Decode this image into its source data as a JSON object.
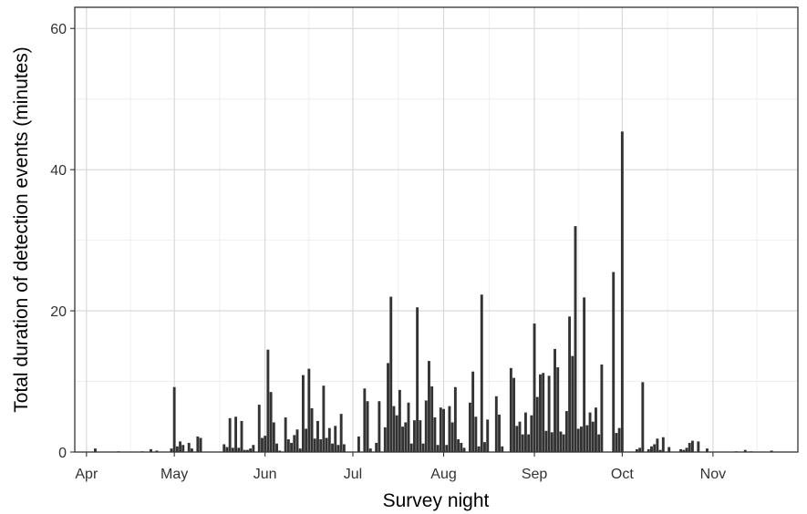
{
  "chart_data": {
    "type": "bar",
    "title": "",
    "xlabel": "Survey night",
    "ylabel": "Total duration of detection events (minutes)",
    "ylim": [
      0,
      63
    ],
    "yticks": [
      0,
      20,
      40,
      60
    ],
    "xlim": [
      "2021-03-28",
      "2021-11-30"
    ],
    "xticks": [
      {
        "date": "2021-04-01",
        "label": "Apr"
      },
      {
        "date": "2021-05-01",
        "label": "May"
      },
      {
        "date": "2021-06-01",
        "label": "Jun"
      },
      {
        "date": "2021-07-01",
        "label": "Jul"
      },
      {
        "date": "2021-08-01",
        "label": "Aug"
      },
      {
        "date": "2021-09-01",
        "label": "Sep"
      },
      {
        "date": "2021-10-01",
        "label": "Oct"
      },
      {
        "date": "2021-11-01",
        "label": "Nov"
      }
    ],
    "grid": true,
    "bar_color": "#333333",
    "points": [
      [
        "2021-04-04",
        0.5
      ],
      [
        "2021-04-12",
        0.1
      ],
      [
        "2021-04-20",
        0.1
      ],
      [
        "2021-04-23",
        0.4
      ],
      [
        "2021-04-25",
        0.2
      ],
      [
        "2021-04-30",
        0.5
      ],
      [
        "2021-05-01",
        9.2
      ],
      [
        "2021-05-02",
        0.8
      ],
      [
        "2021-05-03",
        1.5
      ],
      [
        "2021-05-04",
        1.0
      ],
      [
        "2021-05-06",
        1.3
      ],
      [
        "2021-05-07",
        0.5
      ],
      [
        "2021-05-09",
        2.2
      ],
      [
        "2021-05-10",
        2.0
      ],
      [
        "2021-05-18",
        1.1
      ],
      [
        "2021-05-19",
        0.7
      ],
      [
        "2021-05-20",
        4.8
      ],
      [
        "2021-05-21",
        0.6
      ],
      [
        "2021-05-22",
        5.0
      ],
      [
        "2021-05-23",
        0.6
      ],
      [
        "2021-05-24",
        4.4
      ],
      [
        "2021-05-25",
        0.3
      ],
      [
        "2021-05-26",
        0.3
      ],
      [
        "2021-05-27",
        0.5
      ],
      [
        "2021-05-28",
        1.0
      ],
      [
        "2021-05-30",
        6.7
      ],
      [
        "2021-05-31",
        2.0
      ],
      [
        "2021-06-01",
        2.3
      ],
      [
        "2021-06-02",
        14.5
      ],
      [
        "2021-06-03",
        8.5
      ],
      [
        "2021-06-04",
        4.2
      ],
      [
        "2021-06-05",
        1.2
      ],
      [
        "2021-06-06",
        0.2
      ],
      [
        "2021-06-08",
        4.9
      ],
      [
        "2021-06-09",
        1.8
      ],
      [
        "2021-06-10",
        1.3
      ],
      [
        "2021-06-11",
        2.4
      ],
      [
        "2021-06-12",
        3.2
      ],
      [
        "2021-06-13",
        0.5
      ],
      [
        "2021-06-14",
        10.9
      ],
      [
        "2021-06-15",
        3.3
      ],
      [
        "2021-06-16",
        11.8
      ],
      [
        "2021-06-17",
        6.2
      ],
      [
        "2021-06-18",
        1.9
      ],
      [
        "2021-06-19",
        4.4
      ],
      [
        "2021-06-20",
        1.8
      ],
      [
        "2021-06-21",
        9.4
      ],
      [
        "2021-06-22",
        2.0
      ],
      [
        "2021-06-23",
        3.4
      ],
      [
        "2021-06-24",
        1.2
      ],
      [
        "2021-06-25",
        3.7
      ],
      [
        "2021-06-26",
        1.0
      ],
      [
        "2021-06-27",
        5.4
      ],
      [
        "2021-06-28",
        1.1
      ],
      [
        "2021-07-03",
        2.2
      ],
      [
        "2021-07-05",
        9.0
      ],
      [
        "2021-07-06",
        7.2
      ],
      [
        "2021-07-07",
        0.5
      ],
      [
        "2021-07-09",
        1.3
      ],
      [
        "2021-07-10",
        7.2
      ],
      [
        "2021-07-12",
        3.5
      ],
      [
        "2021-07-13",
        12.6
      ],
      [
        "2021-07-14",
        22.0
      ],
      [
        "2021-07-15",
        6.5
      ],
      [
        "2021-07-16",
        5.2
      ],
      [
        "2021-07-17",
        8.8
      ],
      [
        "2021-07-18",
        3.6
      ],
      [
        "2021-07-19",
        4.2
      ],
      [
        "2021-07-20",
        7.0
      ],
      [
        "2021-07-21",
        1.2
      ],
      [
        "2021-07-22",
        4.5
      ],
      [
        "2021-07-23",
        20.5
      ],
      [
        "2021-07-24",
        4.5
      ],
      [
        "2021-07-25",
        1.2
      ],
      [
        "2021-07-26",
        7.3
      ],
      [
        "2021-07-27",
        12.9
      ],
      [
        "2021-07-28",
        9.3
      ],
      [
        "2021-07-29",
        4.9
      ],
      [
        "2021-07-30",
        1.0
      ],
      [
        "2021-07-31",
        6.3
      ],
      [
        "2021-08-01",
        6.1
      ],
      [
        "2021-08-02",
        1.0
      ],
      [
        "2021-08-03",
        6.5
      ],
      [
        "2021-08-04",
        4.2
      ],
      [
        "2021-08-05",
        9.2
      ],
      [
        "2021-08-06",
        1.8
      ],
      [
        "2021-08-07",
        1.3
      ],
      [
        "2021-08-08",
        0.6
      ],
      [
        "2021-08-10",
        7.0
      ],
      [
        "2021-08-11",
        11.4
      ],
      [
        "2021-08-12",
        5.0
      ],
      [
        "2021-08-13",
        0.8
      ],
      [
        "2021-08-14",
        22.3
      ],
      [
        "2021-08-15",
        1.4
      ],
      [
        "2021-08-16",
        4.6
      ],
      [
        "2021-08-19",
        7.9
      ],
      [
        "2021-08-20",
        5.3
      ],
      [
        "2021-08-21",
        0.8
      ],
      [
        "2021-08-24",
        11.9
      ],
      [
        "2021-08-25",
        10.5
      ],
      [
        "2021-08-26",
        3.7
      ],
      [
        "2021-08-27",
        4.3
      ],
      [
        "2021-08-28",
        2.5
      ],
      [
        "2021-08-29",
        5.6
      ],
      [
        "2021-08-30",
        2.5
      ],
      [
        "2021-08-31",
        5.2
      ],
      [
        "2021-09-01",
        18.2
      ],
      [
        "2021-09-02",
        7.8
      ],
      [
        "2021-09-03",
        11.0
      ],
      [
        "2021-09-04",
        11.2
      ],
      [
        "2021-09-05",
        3.0
      ],
      [
        "2021-09-06",
        10.8
      ],
      [
        "2021-09-07",
        2.8
      ],
      [
        "2021-09-08",
        14.6
      ],
      [
        "2021-09-09",
        12.0
      ],
      [
        "2021-09-10",
        2.9
      ],
      [
        "2021-09-11",
        2.5
      ],
      [
        "2021-09-12",
        5.8
      ],
      [
        "2021-09-13",
        19.2
      ],
      [
        "2021-09-14",
        13.6
      ],
      [
        "2021-09-15",
        32.0
      ],
      [
        "2021-09-16",
        3.3
      ],
      [
        "2021-09-17",
        3.6
      ],
      [
        "2021-09-18",
        21.9
      ],
      [
        "2021-09-19",
        3.8
      ],
      [
        "2021-09-20",
        5.6
      ],
      [
        "2021-09-21",
        4.3
      ],
      [
        "2021-09-22",
        6.3
      ],
      [
        "2021-09-23",
        2.5
      ],
      [
        "2021-09-24",
        12.4
      ],
      [
        "2021-09-28",
        25.5
      ],
      [
        "2021-09-29",
        2.7
      ],
      [
        "2021-09-30",
        3.4
      ],
      [
        "2021-10-01",
        45.4
      ],
      [
        "2021-10-06",
        0.4
      ],
      [
        "2021-10-07",
        0.6
      ],
      [
        "2021-10-08",
        9.9
      ],
      [
        "2021-10-10",
        0.4
      ],
      [
        "2021-10-11",
        0.8
      ],
      [
        "2021-10-12",
        1.1
      ],
      [
        "2021-10-13",
        1.9
      ],
      [
        "2021-10-14",
        0.3
      ],
      [
        "2021-10-15",
        2.1
      ],
      [
        "2021-10-17",
        0.7
      ],
      [
        "2021-10-21",
        0.4
      ],
      [
        "2021-10-22",
        0.3
      ],
      [
        "2021-10-23",
        0.6
      ],
      [
        "2021-10-24",
        1.3
      ],
      [
        "2021-10-25",
        1.6
      ],
      [
        "2021-10-27",
        1.5
      ],
      [
        "2021-10-30",
        0.5
      ],
      [
        "2021-11-09",
        0.1
      ],
      [
        "2021-11-12",
        0.3
      ],
      [
        "2021-11-14",
        0.1
      ],
      [
        "2021-11-21",
        0.2
      ]
    ]
  }
}
